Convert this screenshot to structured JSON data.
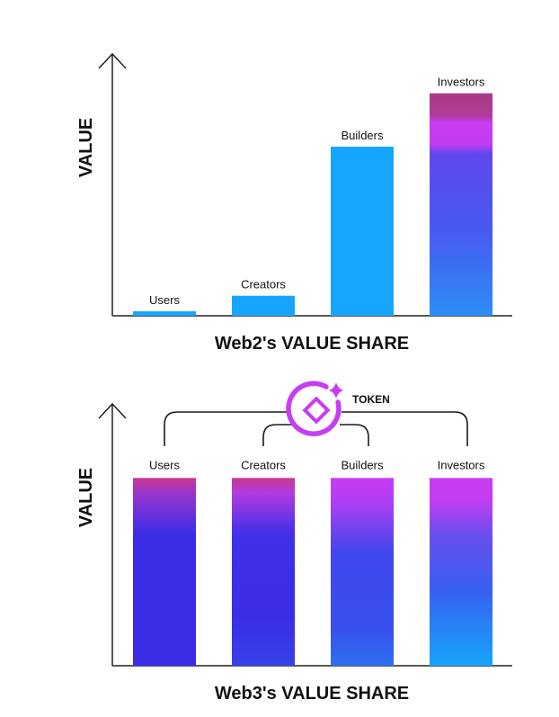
{
  "chart_data": [
    {
      "type": "bar",
      "title": "Web2's VALUE SHARE",
      "ylabel": "VALUE",
      "xlabel": "",
      "categories": [
        "Users",
        "Creators",
        "Builders",
        "Investors"
      ],
      "values": [
        2,
        9,
        76,
        100
      ],
      "ylim": [
        0,
        110
      ],
      "grid": false,
      "colors": {
        "bar": "#16A6FC",
        "axis": "#222222"
      }
    },
    {
      "type": "bar",
      "title": "Web3's VALUE SHARE",
      "ylabel": "VALUE",
      "xlabel": "",
      "categories": [
        "Users",
        "Creators",
        "Builders",
        "Investors"
      ],
      "values": [
        100,
        100,
        100,
        100
      ],
      "ylim": [
        0,
        115
      ],
      "grid": false,
      "connector": {
        "label": "TOKEN",
        "icon": "token-icon"
      },
      "colors": {
        "bar_top": "#C73CF5",
        "bar_body": "#3A2DE6",
        "bar_bottom": "#16A6FC",
        "token": "#C73CF5",
        "axis": "#222222"
      }
    }
  ]
}
